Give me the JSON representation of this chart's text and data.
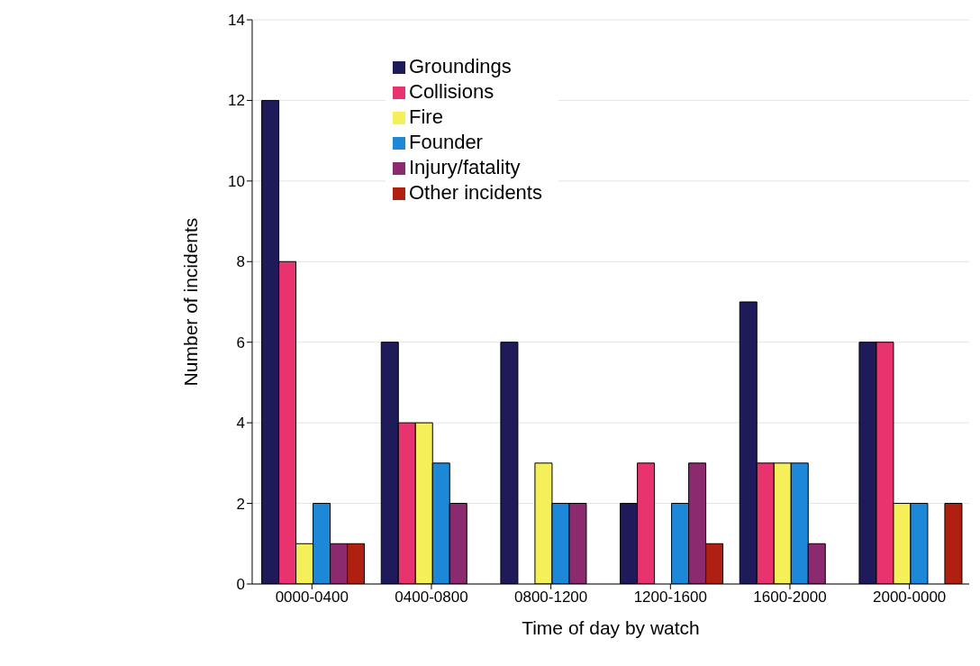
{
  "chart_data": {
    "type": "bar",
    "xlabel": "Time of day by watch",
    "ylabel": "Number of incidents",
    "categories": [
      "0000-0400",
      "0400-0800",
      "0800-1200",
      "1200-1600",
      "1600-2000",
      "2000-0000"
    ],
    "series": [
      {
        "name": "Groundings",
        "color": "#1f1a5a",
        "values": [
          12,
          6,
          6,
          2,
          7,
          6
        ]
      },
      {
        "name": "Collisions",
        "color": "#e8336e",
        "values": [
          8,
          4,
          0,
          3,
          3,
          6
        ]
      },
      {
        "name": "Fire",
        "color": "#f5f05a",
        "values": [
          1,
          4,
          3,
          0,
          3,
          2
        ]
      },
      {
        "name": "Founder",
        "color": "#1e88d8",
        "values": [
          2,
          3,
          2,
          2,
          3,
          2
        ]
      },
      {
        "name": "Injury/fatality",
        "color": "#8b2a6e",
        "values": [
          1,
          2,
          2,
          3,
          1,
          0
        ]
      },
      {
        "name": "Other incidents",
        "color": "#b02010",
        "values": [
          1,
          0,
          0,
          1,
          0,
          2
        ]
      }
    ],
    "ylim": [
      0,
      14
    ],
    "yticks": [
      0,
      2,
      4,
      6,
      8,
      10,
      12,
      14
    ],
    "grid": "y",
    "legend": "top"
  }
}
